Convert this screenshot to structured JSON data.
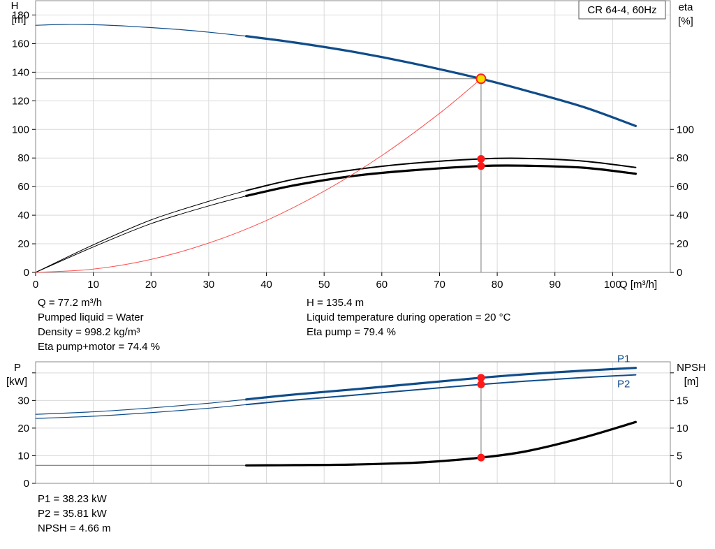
{
  "chart_data": [
    {
      "type": "line",
      "title": "CR 64-4, 60Hz",
      "xlabel": "Q [m³/h]",
      "ylabel": "H\n[m]",
      "y2label": "eta\n[%]",
      "xlim": [
        0,
        110
      ],
      "ylim": [
        0,
        190
      ],
      "xticks": [
        0,
        10,
        20,
        30,
        40,
        50,
        60,
        70,
        80,
        90,
        100
      ],
      "yticks": [
        0,
        20,
        40,
        60,
        80,
        100,
        120,
        140,
        160,
        180
      ],
      "y2lim": [
        0,
        190
      ],
      "y2ticks": [
        0,
        20,
        40,
        60,
        80,
        100
      ],
      "grid": true,
      "series": [
        {
          "name": "",
          "role": "head-extrapolated",
          "color": "#1f4e79",
          "x": [
            0,
            5,
            10,
            15,
            20,
            25,
            30,
            36.5
          ],
          "y": [
            172.8,
            173.4,
            173.2,
            172.4,
            171.2,
            169.8,
            168.0,
            165.2
          ]
        },
        {
          "name": "",
          "role": "head",
          "color": "#0f4c8a",
          "x": [
            36.5,
            45,
            55,
            65,
            77.2,
            85,
            95,
            104
          ],
          "y": [
            165.2,
            160.7,
            154.3,
            146.5,
            135.4,
            127.1,
            115.6,
            102.4
          ]
        },
        {
          "name": "",
          "role": "eta-pump-extrapolated",
          "color": "#000000",
          "x": [
            0,
            10,
            20,
            30,
            36.5
          ],
          "y": [
            0,
            19.3,
            36.7,
            49.7,
            57.2
          ]
        },
        {
          "name": "",
          "role": "eta-pump",
          "color": "#000000",
          "x": [
            36.5,
            45,
            55,
            65,
            77.2,
            85,
            95,
            104
          ],
          "y": [
            57.2,
            65.3,
            71.7,
            76.2,
            79.4,
            79.7,
            77.8,
            73.4
          ]
        },
        {
          "name": "",
          "role": "eta-pump-motor-extrapolated",
          "color": "#000000",
          "x": [
            0,
            10,
            20,
            30,
            36.5
          ],
          "y": [
            0,
            17.8,
            34.1,
            46.5,
            53.5
          ]
        },
        {
          "name": "",
          "role": "eta-pump-motor",
          "color": "#000000",
          "x": [
            36.5,
            45,
            55,
            65,
            77.2,
            85,
            95,
            104
          ],
          "y": [
            53.5,
            61.0,
            67.4,
            71.3,
            74.4,
            74.6,
            73.2,
            69.0
          ]
        },
        {
          "name": "",
          "role": "system-curve",
          "color": "#ff4d4d",
          "x": [
            0,
            10,
            20,
            30,
            40,
            50,
            60,
            70,
            77.2
          ],
          "y": [
            0,
            2.3,
            9.1,
            20.5,
            36.3,
            56.8,
            81.7,
            111.2,
            135.4
          ]
        }
      ],
      "duty_point": {
        "q": 77.2,
        "h": 135.4,
        "eta_pump": 79.4,
        "eta_pump_motor": 74.4
      }
    },
    {
      "type": "line",
      "xlim": [
        0,
        110
      ],
      "ylabel": "P\n[kW]",
      "y2label": "NPSH\n[m]",
      "ylim": [
        0,
        44
      ],
      "yticks": [
        0,
        10,
        20,
        30
      ],
      "y2lim": [
        0,
        22
      ],
      "y2ticks": [
        0,
        5,
        10,
        15
      ],
      "grid": true,
      "series": [
        {
          "name": "P1",
          "role": "p1-extrapolated",
          "color": "#1f4e79",
          "x": [
            0,
            10,
            20,
            30,
            36.5
          ],
          "y": [
            25.0,
            25.9,
            27.3,
            29.0,
            30.4
          ]
        },
        {
          "name": "P1",
          "role": "p1",
          "color": "#0f4c8a",
          "x": [
            36.5,
            45,
            55,
            65,
            77.2,
            85,
            95,
            104
          ],
          "y": [
            30.4,
            32.2,
            34.0,
            35.9,
            38.23,
            39.5,
            40.8,
            41.8
          ]
        },
        {
          "name": "P2",
          "role": "p2-extrapolated",
          "color": "#1f4e79",
          "x": [
            0,
            10,
            20,
            30,
            36.5
          ],
          "y": [
            23.5,
            24.3,
            25.6,
            27.2,
            28.5
          ]
        },
        {
          "name": "P2",
          "role": "p2",
          "color": "#0f4c8a",
          "x": [
            36.5,
            45,
            55,
            65,
            77.2,
            85,
            95,
            104
          ],
          "y": [
            28.5,
            30.2,
            31.9,
            33.7,
            35.81,
            37.0,
            38.3,
            39.3
          ]
        },
        {
          "name": "",
          "role": "npsh-extrapolated",
          "color": "#666666",
          "axis": "y2",
          "x": [
            0,
            36.5
          ],
          "y": [
            3.25,
            3.25
          ]
        },
        {
          "name": "",
          "role": "npsh",
          "color": "#000000",
          "axis": "y2",
          "x": [
            36.5,
            45,
            55,
            65,
            70,
            77.2,
            85,
            95,
            104
          ],
          "y": [
            3.25,
            3.3,
            3.4,
            3.7,
            4.0,
            4.66,
            5.8,
            8.3,
            11.1
          ]
        }
      ],
      "duty_point": {
        "q": 77.2,
        "p1": 38.23,
        "p2": 35.81,
        "npsh": 4.66
      }
    }
  ],
  "info_top_left": [
    "Q = 77.2 m³/h",
    "Pumped liquid = Water",
    "Density = 998.2 kg/m³",
    "Eta pump+motor = 74.4 %"
  ],
  "info_top_right": [
    "H = 135.4 m",
    "Liquid temperature during operation = 20 °C",
    "Eta pump = 79.4 %"
  ],
  "info_bottom": [
    "P1 = 38.23 kW",
    "P2 = 35.81 kW",
    "NPSH = 4.66 m"
  ],
  "colors": {
    "head": "#0f4c8a",
    "power": "#0f4c8a",
    "eta": "#000000",
    "system": "#ff4d4d",
    "marker": "#ff1a1a",
    "duty": "#f0e000",
    "grid": "#d9d9d9"
  }
}
